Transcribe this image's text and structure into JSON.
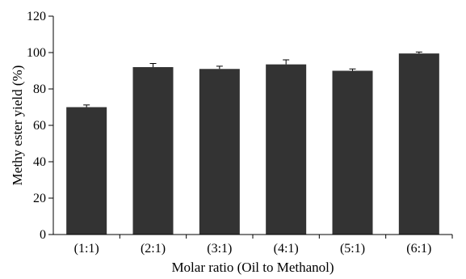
{
  "chart_data": {
    "type": "bar",
    "categories": [
      "(1:1)",
      "(2:1)",
      "(3:1)",
      "(4:1)",
      "(5:1)",
      "(6:1)"
    ],
    "values": [
      70,
      92,
      91,
      93.5,
      90,
      99.5
    ],
    "errors": [
      1.2,
      2.0,
      1.5,
      2.5,
      1.0,
      0.8
    ],
    "title": "",
    "xlabel": "Molar ratio (Oil to Methanol)",
    "ylabel": "Methy ester yield (%)",
    "ylim": [
      0,
      120
    ],
    "yticks": [
      0,
      20,
      40,
      60,
      80,
      100,
      120
    ],
    "grid": false,
    "bar_color": "#333333"
  }
}
